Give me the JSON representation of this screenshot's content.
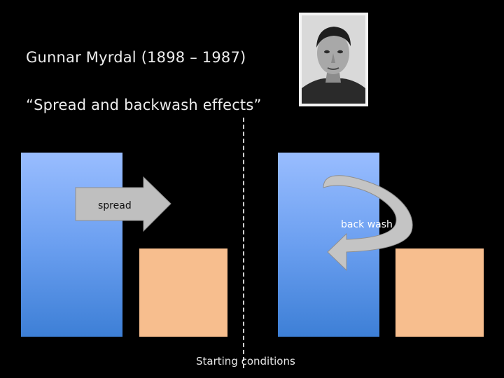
{
  "slide": {
    "title": "Gunnar Myrdal (1898 – 1987)",
    "subtitle": "“Spread and backwash effects”"
  },
  "diagram": {
    "spread_label": "spread",
    "backwash_label": "back wash",
    "starting_label": "Starting conditions"
  },
  "colors": {
    "background": "#000000",
    "tall_bar_top": "#99bdff",
    "tall_bar_bottom": "#3d7fd6",
    "short_bar": "#f7be8e",
    "arrow_fill": "#bfbfbf"
  },
  "portrait": {
    "subject": "black-and-white portrait of Gunnar Myrdal"
  }
}
